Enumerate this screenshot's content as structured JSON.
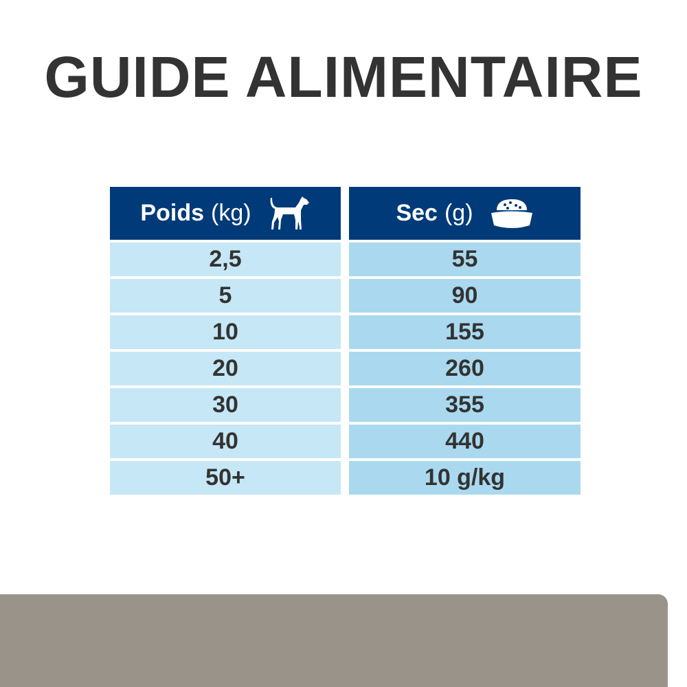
{
  "title": "GUIDE ALIMENTAIRE",
  "table": {
    "columns": [
      {
        "label": "Poids",
        "unit": "(kg)",
        "icon": "dog-icon"
      },
      {
        "label": "Sec",
        "unit": "(g)",
        "icon": "food-bowl-icon"
      }
    ],
    "rows": [
      [
        "2,5",
        "55"
      ],
      [
        "5",
        "90"
      ],
      [
        "10",
        "155"
      ],
      [
        "20",
        "260"
      ],
      [
        "30",
        "355"
      ],
      [
        "40",
        "440"
      ],
      [
        "50+",
        "10 g/kg"
      ]
    ]
  },
  "colors": {
    "header": "#003a78",
    "left_cells": "#c6e7f5",
    "right_cells": "#aad9ef",
    "footer": "#9a938a",
    "text": "#333333"
  }
}
